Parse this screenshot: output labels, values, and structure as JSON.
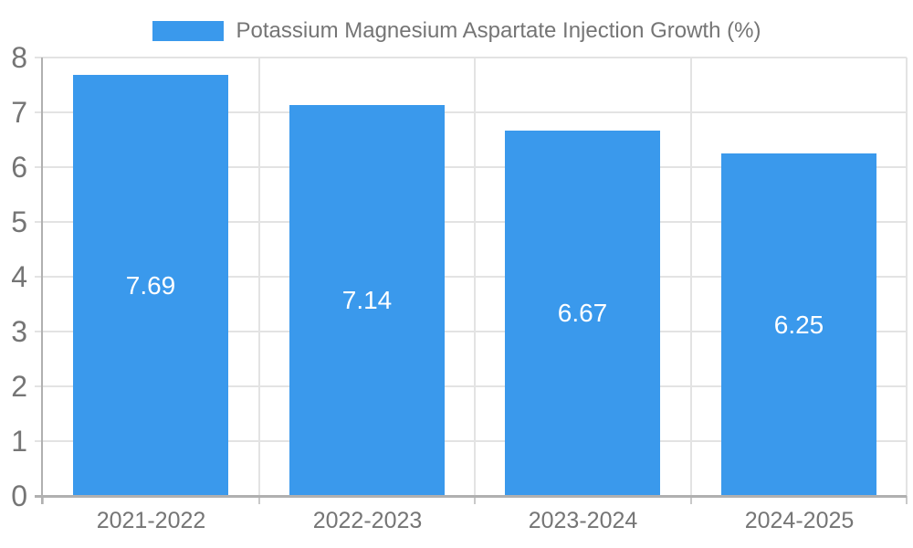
{
  "chart_data": {
    "type": "bar",
    "title": "Potassium Magnesium Aspartate Injection Growth (%)",
    "categories": [
      "2021-2022",
      "2022-2023",
      "2023-2024",
      "2024-2025"
    ],
    "values": [
      7.69,
      7.14,
      6.67,
      6.25
    ],
    "value_labels": [
      "7.69",
      "7.14",
      "6.67",
      "6.25"
    ],
    "xlabel": "",
    "ylabel": "",
    "ylim": [
      0,
      8
    ],
    "y_ticks": [
      0,
      1,
      2,
      3,
      4,
      5,
      6,
      7,
      8
    ],
    "grid": true,
    "legend_position": "top-center",
    "colors": {
      "bar": "#3a99ec",
      "value_label": "#ffffff",
      "axis_text": "#757575",
      "grid_line": "#e3e3e3",
      "axis_line": "#b0b0b0",
      "tick_line": "#c9c9c9",
      "background": "#ffffff"
    }
  }
}
